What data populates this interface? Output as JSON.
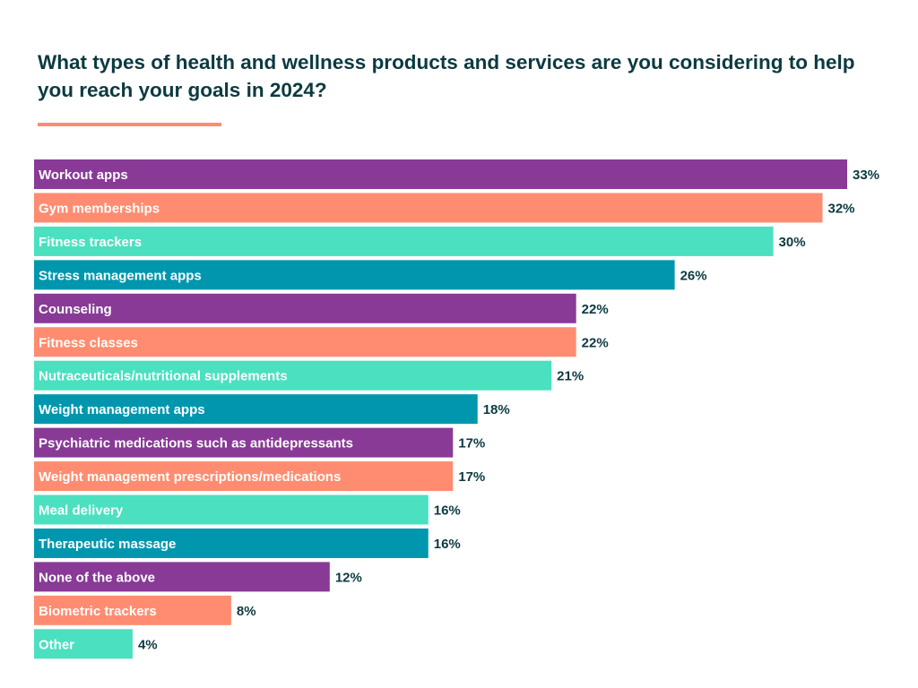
{
  "chart_data": {
    "type": "bar",
    "orientation": "horizontal",
    "title": "What types of health and wellness products and services are you considering to help you reach your goals in 2024?",
    "categories": [
      "Workout apps",
      "Gym memberships",
      "Fitness trackers",
      "Stress management apps",
      "Counseling",
      "Fitness classes",
      "Nutraceuticals/nutritional supplements",
      "Weight management apps",
      "Psychiatric medications such as antidepressants",
      "Weight management prescriptions/medications",
      "Meal delivery",
      "Therapeutic massage",
      "None of the above",
      "Biometric trackers",
      "Other"
    ],
    "values": [
      33,
      32,
      30,
      26,
      22,
      22,
      21,
      18,
      17,
      17,
      16,
      16,
      12,
      8,
      4
    ],
    "value_labels": [
      "33%",
      "32%",
      "30%",
      "26%",
      "22%",
      "22%",
      "21%",
      "18%",
      "17%",
      "17%",
      "16%",
      "16%",
      "12%",
      "8%",
      "4%"
    ],
    "unit": "%",
    "xlim": [
      0,
      33
    ],
    "grid": false,
    "legend": "none",
    "colors_cycle": [
      "#883a96",
      "#ff8c70",
      "#4be0c0",
      "#0097ae"
    ],
    "accent_underline_color": "#ff8c70"
  }
}
